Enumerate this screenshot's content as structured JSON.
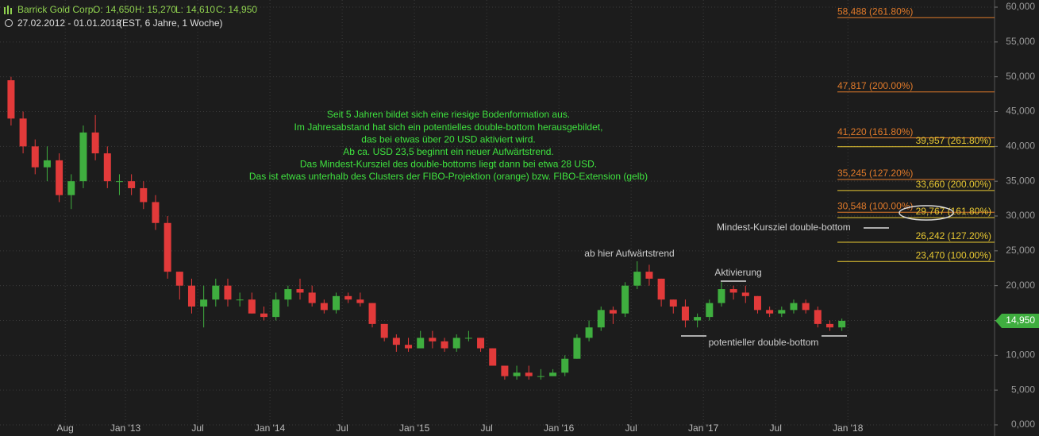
{
  "chart_data": {
    "type": "candlestick",
    "header": {
      "name": "Barrick Gold Corp.",
      "ohlc": [
        "O: 14,650",
        "H: 15,270",
        "L: 14,610",
        "C: 14,950"
      ],
      "range": "27.02.2012 - 01.01.2018",
      "info": "(EST, 6 Jahre, 1 Woche)"
    },
    "x": [
      "2012-03",
      "2012-04",
      "2012-05",
      "2012-06",
      "2012-07",
      "2012-08",
      "2012-09",
      "2012-10",
      "2012-11",
      "2012-12",
      "2013-01",
      "2013-02",
      "2013-03",
      "2013-04",
      "2013-05",
      "2013-06",
      "2013-07",
      "2013-08",
      "2013-09",
      "2013-10",
      "2013-11",
      "2013-12",
      "2014-01",
      "2014-02",
      "2014-03",
      "2014-04",
      "2014-05",
      "2014-06",
      "2014-07",
      "2014-08",
      "2014-09",
      "2014-10",
      "2014-11",
      "2014-12",
      "2015-01",
      "2015-02",
      "2015-03",
      "2015-04",
      "2015-05",
      "2015-06",
      "2015-07",
      "2015-08",
      "2015-09",
      "2015-10",
      "2015-11",
      "2015-12",
      "2016-01",
      "2016-02",
      "2016-03",
      "2016-04",
      "2016-05",
      "2016-06",
      "2016-07",
      "2016-08",
      "2016-09",
      "2016-10",
      "2016-11",
      "2016-12",
      "2017-01",
      "2017-02",
      "2017-03",
      "2017-04",
      "2017-05",
      "2017-06",
      "2017-07",
      "2017-08",
      "2017-09",
      "2017-10",
      "2017-11",
      "2017-12"
    ],
    "open": [
      49500,
      44000,
      40000,
      37000,
      38000,
      33000,
      35000,
      42000,
      39000,
      35000,
      35000,
      34000,
      32000,
      29000,
      22000,
      20000,
      17000,
      18000,
      20000,
      18000,
      18000,
      16000,
      15500,
      18000,
      19500,
      19000,
      17500,
      16500,
      18500,
      18000,
      17500,
      14500,
      12500,
      11500,
      11000,
      12500,
      12000,
      11000,
      12500,
      12500,
      11000,
      8500,
      7000,
      7500,
      7000,
      7000,
      7500,
      9500,
      12500,
      14000,
      16500,
      16000,
      20000,
      22000,
      21000,
      18000,
      17000,
      15000,
      15500,
      17500,
      19500,
      19000,
      18500,
      16500,
      16000,
      16500,
      17500,
      16500,
      14500,
      14000
    ],
    "high": [
      50000,
      45000,
      41000,
      40000,
      39000,
      36000,
      43000,
      44500,
      40000,
      36000,
      36000,
      35000,
      33000,
      30000,
      22000,
      21000,
      20000,
      21000,
      21000,
      19000,
      19000,
      17000,
      19000,
      20000,
      21000,
      20000,
      18000,
      19000,
      19000,
      19000,
      17500,
      14500,
      13000,
      12500,
      13500,
      13500,
      12500,
      13000,
      13500,
      12500,
      11000,
      8500,
      8500,
      8500,
      8000,
      8000,
      10000,
      13000,
      15000,
      17000,
      17000,
      20500,
      23500,
      23000,
      21000,
      18000,
      18000,
      16000,
      18000,
      20500,
      20000,
      20000,
      18500,
      17000,
      17000,
      18000,
      18000,
      17000,
      15000,
      15270
    ],
    "low": [
      43000,
      39000,
      36000,
      35000,
      32000,
      31000,
      34000,
      38000,
      34000,
      33000,
      33000,
      31000,
      28000,
      21000,
      18000,
      16000,
      14000,
      17000,
      17000,
      17000,
      16000,
      15000,
      15000,
      17000,
      18000,
      17000,
      16000,
      16000,
      17500,
      17000,
      14000,
      12000,
      10500,
      10500,
      11000,
      11000,
      10500,
      10500,
      12000,
      10500,
      8500,
      6500,
      6500,
      6500,
      6500,
      7000,
      7000,
      9500,
      12000,
      13500,
      14500,
      15500,
      19500,
      20000,
      17000,
      16000,
      14000,
      14000,
      15000,
      17000,
      18000,
      17500,
      16000,
      15500,
      15500,
      16000,
      16000,
      14000,
      13500,
      13500
    ],
    "close": [
      44000,
      40000,
      37000,
      38000,
      33000,
      35000,
      42000,
      39000,
      35000,
      35000,
      34000,
      32000,
      29000,
      22000,
      20000,
      17000,
      18000,
      20000,
      18000,
      18000,
      16000,
      15500,
      18000,
      19500,
      19000,
      17500,
      16500,
      18500,
      18000,
      17500,
      14500,
      12500,
      11500,
      11000,
      12500,
      12000,
      11000,
      12500,
      12500,
      11000,
      8500,
      7000,
      7500,
      7000,
      7000,
      7500,
      9500,
      12500,
      14000,
      16500,
      16000,
      20000,
      22000,
      21000,
      18000,
      17000,
      15000,
      15500,
      17500,
      19500,
      19000,
      18500,
      16500,
      16000,
      16500,
      17500,
      16500,
      14500,
      14000,
      14950
    ],
    "up_color": "#3fae3f",
    "down_color": "#e23a3a",
    "xticks": [
      {
        "value": "2012-08",
        "label": "Aug"
      },
      {
        "value": "2013-01",
        "label": "Jan '13"
      },
      {
        "value": "2013-07",
        "label": "Jul"
      },
      {
        "value": "2014-01",
        "label": "Jan '14"
      },
      {
        "value": "2014-07",
        "label": "Jul"
      },
      {
        "value": "2015-01",
        "label": "Jan '15"
      },
      {
        "value": "2015-07",
        "label": "Jul"
      },
      {
        "value": "2016-01",
        "label": "Jan '16"
      },
      {
        "value": "2016-07",
        "label": "Jul"
      },
      {
        "value": "2017-01",
        "label": "Jan '17"
      },
      {
        "value": "2017-07",
        "label": "Jul"
      },
      {
        "value": "2018-01",
        "label": "Jan '18"
      }
    ],
    "ylim": [
      0,
      60000
    ],
    "yticks": [
      {
        "value": 0,
        "label": "0,000"
      },
      {
        "value": 5000,
        "label": "5,000"
      },
      {
        "value": 10000,
        "label": "10,000"
      },
      {
        "value": 15000,
        "label": "15,000"
      },
      {
        "value": 20000,
        "label": "20,000"
      },
      {
        "value": 25000,
        "label": "25,000"
      },
      {
        "value": 30000,
        "label": "30,000"
      },
      {
        "value": 35000,
        "label": "35,000"
      },
      {
        "value": 40000,
        "label": "40,000"
      },
      {
        "value": 45000,
        "label": "45,000"
      },
      {
        "value": 50000,
        "label": "50,000"
      },
      {
        "value": 55000,
        "label": "55,000"
      },
      {
        "value": 60000,
        "label": "60,000"
      }
    ],
    "grid": true,
    "last_price": {
      "value": 14950,
      "label": "14,950"
    },
    "fibo_projection": {
      "color": "#e07a2a",
      "levels": [
        {
          "value": 58488,
          "label": "58,488 (261.80%)"
        },
        {
          "value": 47817,
          "label": "47,817 (200.00%)"
        },
        {
          "value": 41220,
          "label": "41,220 (161.80%)"
        },
        {
          "value": 35245,
          "label": "35,245 (127.20%)"
        },
        {
          "value": 30548,
          "label": "30,548 (100.00%)"
        }
      ]
    },
    "fibo_extension": {
      "color": "#e8c832",
      "levels": [
        {
          "value": 39957,
          "label": "39,957 (261.80%)"
        },
        {
          "value": 33660,
          "label": "33,660 (200.00%)"
        },
        {
          "value": 29767,
          "label": "29,767 (161.80%)"
        },
        {
          "value": 26242,
          "label": "26,242 (127.20%)"
        },
        {
          "value": 23470,
          "label": "23,470 (100.00%)"
        }
      ]
    },
    "comment": [
      "Seit 5 Jahren bildet sich eine riesige Bodenformation aus.",
      "Im Jahresabstand hat sich ein potentielles double-bottom herausgebildet,",
      "das bei etwas über 20 USD aktiviert wird.",
      "Ab ca. USD 23,5 beginnt ein neuer Aufwärtstrend.",
      "Das Mindest-Kursziel des double-bottoms liegt dann bei etwa 28 USD.",
      "Das ist etwas unterhalb des Clusters der FIBO-Projektion (orange) bzw. FIBO-Extension (gelb)"
    ],
    "annotations": [
      "ab hier Aufwärtstrend",
      "Aktivierung",
      "Mindest-Kursziel double-bottom",
      "potentieller double-bottom"
    ]
  }
}
